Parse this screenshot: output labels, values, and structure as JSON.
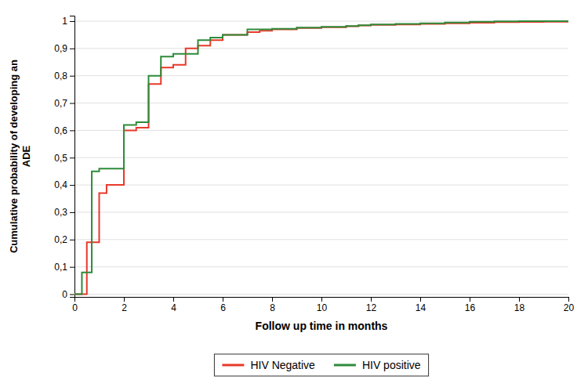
{
  "chart_data": {
    "type": "line",
    "line_style": "step",
    "series": [
      {
        "name": "HIV Negative",
        "color": "#e8392a",
        "x": [
          0,
          0.5,
          1.0,
          1.3,
          2.0,
          2.5,
          3.0,
          3.5,
          4.0,
          4.5,
          5.0,
          5.5,
          6.0,
          7.0,
          7.5,
          8.0,
          9.0,
          10.0,
          11.0,
          11.5,
          12.0,
          13.0,
          14.0,
          15.0,
          16.0,
          17.0,
          18.0,
          19.0,
          20.0
        ],
        "values": [
          0,
          0.19,
          0.37,
          0.4,
          0.6,
          0.61,
          0.77,
          0.83,
          0.84,
          0.9,
          0.91,
          0.93,
          0.95,
          0.96,
          0.965,
          0.97,
          0.975,
          0.978,
          0.981,
          0.984,
          0.986,
          0.988,
          0.99,
          0.992,
          0.994,
          0.996,
          0.997,
          0.998,
          0.998
        ]
      },
      {
        "name": "HIV positive",
        "color": "#2e8b3a",
        "x": [
          0,
          0.3,
          0.7,
          1.0,
          2.0,
          2.5,
          3.0,
          3.5,
          4.0,
          5.0,
          5.5,
          6.0,
          7.0,
          8.0,
          9.0,
          10.0,
          11.0,
          11.5,
          12.0,
          13.0,
          14.0,
          15.0,
          16.0,
          17.0,
          18.0,
          19.0,
          20.0
        ],
        "values": [
          0,
          0.08,
          0.45,
          0.46,
          0.62,
          0.63,
          0.8,
          0.87,
          0.88,
          0.93,
          0.94,
          0.95,
          0.97,
          0.972,
          0.976,
          0.979,
          0.982,
          0.985,
          0.988,
          0.99,
          0.992,
          0.995,
          0.998,
          0.999,
          1.0,
          1.0,
          1.0
        ]
      }
    ],
    "x_label": "Follow up time in months",
    "y_label": "Cumulative probability of developing an\nADE",
    "xlim": [
      0,
      20
    ],
    "ylim": [
      -0.01,
      1.02
    ],
    "xticks": [
      0,
      2,
      4,
      6,
      8,
      10,
      12,
      14,
      16,
      18,
      20
    ],
    "yticks": [
      0,
      {
        "value": 0.1,
        "label": "0,1"
      },
      {
        "value": 0.2,
        "label": "0,2"
      },
      {
        "value": 0.3,
        "label": "0,3"
      },
      {
        "value": 0.4,
        "label": "0,4"
      },
      {
        "value": 0.5,
        "label": "0,5"
      },
      {
        "value": 0.6,
        "label": "0,6"
      },
      {
        "value": 0.7,
        "label": "0,7"
      },
      {
        "value": 0.8,
        "label": "0,8"
      },
      {
        "value": 0.9,
        "label": "0,9"
      },
      1
    ],
    "grid": "y",
    "legend": "bottom"
  }
}
